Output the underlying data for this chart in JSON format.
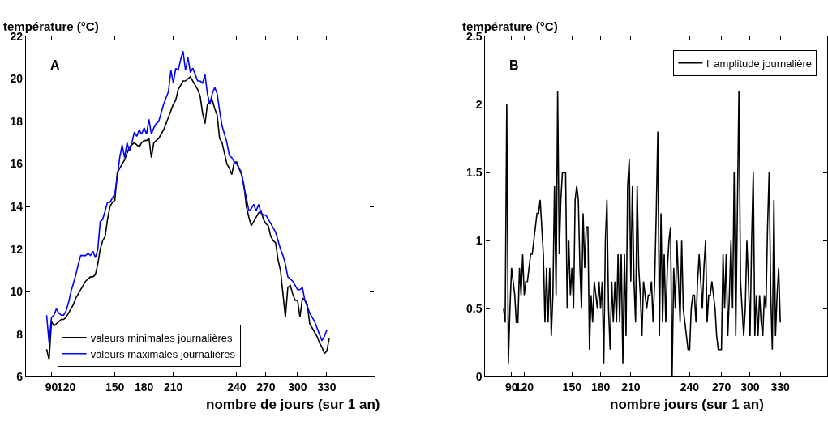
{
  "chart_data": [
    {
      "type": "line",
      "xlabel": "nombre de jours (sur 1 an)",
      "ylabel": "température (°C)",
      "annotations": [
        "A"
      ],
      "ylim": [
        6,
        22
      ],
      "yticks": [
        6,
        8,
        10,
        12,
        14,
        16,
        18,
        20,
        22
      ],
      "categories": [
        null,
        null,
        null,
        null,
        null,
        null,
        null,
        null,
        null,
        null,
        "90",
        null,
        null,
        null,
        null,
        null,
        "120",
        null,
        null,
        null,
        null,
        null,
        null,
        null,
        null,
        null,
        null,
        null,
        null,
        null,
        null,
        null,
        null,
        null,
        null,
        null,
        "150",
        null,
        null,
        null,
        null,
        null,
        null,
        null,
        null,
        null,
        null,
        null,
        "180",
        null,
        null,
        null,
        null,
        null,
        null,
        null,
        null,
        null,
        null,
        null,
        "210",
        null,
        null,
        null,
        null,
        null,
        null,
        null,
        null,
        null,
        null,
        null,
        null,
        null,
        null,
        null,
        null,
        null,
        null,
        null,
        null,
        null,
        null,
        null,
        null,
        null,
        "240",
        null,
        null,
        null,
        null,
        null,
        null,
        null,
        null,
        null,
        null,
        null,
        "270",
        null,
        null,
        null,
        null,
        null,
        null,
        null,
        null,
        null,
        null,
        null,
        null,
        "300",
        null,
        null,
        null,
        null,
        null,
        null,
        null,
        null,
        null,
        null,
        null,
        "330",
        null,
        null,
        null,
        null,
        null,
        null,
        null,
        null,
        null,
        null,
        null,
        null,
        null,
        null,
        null,
        null,
        null,
        null,
        null
      ],
      "legend": "bottom",
      "marker": "none",
      "line_style": "solid",
      "series": [
        {
          "name": "valeurs minimales journalières",
          "color": "#000000",
          "values": [
            null,
            null,
            null,
            null,
            null,
            null,
            null,
            null,
            7.3,
            6.8,
            8.6,
            8.4,
            8.5,
            8.6,
            8.7,
            8.7,
            8.8,
            9.0,
            9.2,
            9.4,
            9.7,
            9.9,
            10.1,
            10.3,
            10.5,
            10.6,
            10.7,
            10.7,
            10.8,
            11.3,
            12.0,
            12.4,
            12.6,
            13.4,
            14.0,
            14.2,
            14.3,
            15.6,
            15.8,
            16.0,
            16.2,
            16.5,
            16.8,
            16.9,
            17.0,
            16.9,
            16.8,
            17.0,
            17.1,
            17.1,
            17.2,
            16.3,
            17.0,
            17.1,
            17.2,
            17.4,
            17.6,
            17.9,
            18.2,
            18.5,
            18.8,
            19.0,
            19.5,
            19.7,
            19.9,
            19.9,
            20.0,
            20.1,
            19.9,
            19.7,
            19.5,
            19.2,
            18.4,
            17.9,
            18.8,
            18.9,
            19.0,
            18.6,
            18.3,
            17.2,
            17.0,
            16.5,
            16.0,
            15.8,
            15.5,
            16.1,
            16.1,
            15.8,
            15.5,
            15.0,
            14.0,
            13.5,
            13.1,
            13.3,
            13.5,
            13.7,
            13.8,
            13.4,
            13.2,
            13.1,
            12.6,
            12.4,
            12.3,
            11.5,
            11.0,
            9.9,
            8.8,
            10.2,
            10.3,
            9.9,
            9.6,
            9.6,
            8.8,
            9.7,
            9.6,
            9.4,
            8.5,
            8.3,
            8.1,
            7.9,
            7.6,
            7.4,
            7.1,
            7.2,
            7.8,
            null,
            null,
            null,
            null,
            null,
            null,
            null,
            null,
            null,
            null,
            null,
            null,
            null,
            null,
            null,
            null,
            null,
            null
          ]
        },
        {
          "name": "valeurs maximales journalières",
          "color": "#0000ff",
          "values": [
            null,
            null,
            null,
            null,
            null,
            null,
            null,
            null,
            8.9,
            7.6,
            8.8,
            8.9,
            9.2,
            9.0,
            8.9,
            8.9,
            9.1,
            9.5,
            10.0,
            10.4,
            10.8,
            11.3,
            11.7,
            11.7,
            11.7,
            11.8,
            11.7,
            11.9,
            11.6,
            12.0,
            13.3,
            13.4,
            13.8,
            14.2,
            14.2,
            14.4,
            14.6,
            15.4,
            16.3,
            16.9,
            16.3,
            17.0,
            16.6,
            17.0,
            17.5,
            17.3,
            17.6,
            17.4,
            17.7,
            17.4,
            18.1,
            17.4,
            17.7,
            17.9,
            18.0,
            18.4,
            18.8,
            19.1,
            19.4,
            20.4,
            19.8,
            20.5,
            20.4,
            20.9,
            21.3,
            20.4,
            21.0,
            20.3,
            20.5,
            20.2,
            19.9,
            19.9,
            19.8,
            20.2,
            19.3,
            18.8,
            19.3,
            19.6,
            19.3,
            18.5,
            17.8,
            17.4,
            17.0,
            16.4,
            16.3,
            16.1,
            16.0,
            15.8,
            15.6,
            14.9,
            14.4,
            13.8,
            13.9,
            14.1,
            13.8,
            14.1,
            13.7,
            13.6,
            13.6,
            13.4,
            13.2,
            13.0,
            12.8,
            12.4,
            12.0,
            11.7,
            11.3,
            10.7,
            10.6,
            10.5,
            10.3,
            10.1,
            10.1,
            10.2,
            9.6,
            9.3,
            9.0,
            8.8,
            8.6,
            8.3,
            8.0,
            7.7,
            7.9,
            8.2,
            null,
            null,
            null,
            null,
            null,
            null,
            null,
            null,
            null,
            null,
            null,
            null,
            null,
            null,
            null,
            null,
            null,
            null,
            null
          ]
        }
      ]
    },
    {
      "type": "line",
      "xlabel": "nombre jours (sur 1 an)",
      "ylabel": "température (°C)",
      "annotations": [
        "B"
      ],
      "ylim": [
        0,
        2.5
      ],
      "yticks": [
        0,
        0.5,
        1,
        1.5,
        2,
        2.5
      ],
      "categories": [
        null,
        null,
        null,
        null,
        null,
        null,
        null,
        null,
        null,
        null,
        null,
        null,
        null,
        null,
        null,
        null,
        "90",
        null,
        null,
        null,
        null,
        null,
        null,
        null,
        "120",
        null,
        null,
        null,
        null,
        null,
        null,
        null,
        null,
        null,
        null,
        null,
        null,
        null,
        null,
        null,
        null,
        null,
        null,
        null,
        null,
        null,
        null,
        null,
        null,
        null,
        null,
        null,
        null,
        null,
        "150",
        null,
        null,
        null,
        null,
        null,
        null,
        null,
        null,
        null,
        null,
        null,
        null,
        null,
        null,
        null,
        null,
        null,
        "180",
        null,
        null,
        null,
        null,
        null,
        null,
        null,
        null,
        null,
        null,
        null,
        null,
        null,
        null,
        null,
        null,
        null,
        null,
        "210",
        null,
        null,
        null,
        null,
        null,
        null,
        null,
        null,
        null,
        null,
        null,
        null,
        null,
        null,
        null,
        null,
        null,
        null,
        null,
        null,
        null,
        null,
        null,
        null,
        null,
        null,
        null,
        null,
        null,
        null,
        null,
        null,
        null,
        null,
        null,
        null,
        "240",
        null,
        null,
        null,
        null,
        null,
        null,
        null,
        null,
        null,
        null,
        null,
        null,
        null,
        null,
        null,
        null,
        null,
        null,
        null,
        "270",
        null,
        null,
        null,
        null,
        null,
        null,
        null,
        null,
        null,
        null,
        null,
        null,
        null,
        null,
        null,
        null,
        null,
        "300",
        null,
        null,
        null,
        null,
        null,
        null,
        null,
        null,
        null,
        null,
        null,
        null,
        null,
        null,
        null,
        null,
        null,
        null,
        "330",
        null,
        null,
        null,
        null,
        null,
        null,
        null,
        null,
        null,
        null,
        null,
        null,
        null,
        null,
        null,
        null,
        null,
        null,
        null,
        null,
        null,
        null,
        null,
        null,
        null,
        null,
        null,
        null,
        null
      ],
      "legend": "top right",
      "marker": "none",
      "line_style": "solid",
      "series": [
        {
          "name": "l' amplitude journalière",
          "color": "#000000",
          "values": [
            null,
            null,
            null,
            null,
            null,
            null,
            null,
            null,
            null,
            null,
            null,
            0.5,
            0.4,
            2.0,
            0.1,
            0.5,
            0.8,
            0.7,
            0.6,
            0.4,
            0.4,
            0.8,
            0.6,
            0.9,
            0.6,
            0.7,
            0.7,
            0.8,
            0.9,
            0.9,
            1.0,
            1.1,
            1.2,
            1.2,
            1.3,
            1.1,
            0.9,
            0.4,
            0.8,
            0.4,
            0.8,
            0.3,
            0.6,
            1.4,
            0.6,
            2.1,
            0.9,
            1.3,
            1.5,
            1.5,
            1.5,
            0.5,
            1.0,
            0.6,
            0.8,
            0.5,
            1.3,
            1.4,
            1.3,
            0.8,
            0.5,
            1.2,
            0.8,
            1.1,
            1.1,
            0.2,
            0.6,
            0.4,
            0.7,
            0.6,
            0.5,
            0.7,
            0.5,
            0.7,
            0.1,
            1.0,
            1.3,
            0.5,
            0.2,
            0.7,
            0.4,
            0.7,
            0.4,
            0.9,
            0.4,
            0.9,
            0.1,
            0.9,
            0.3,
            1.4,
            1.6,
            0.7,
            1.4,
            0.7,
            0.4,
            1.4,
            0.8,
            0.6,
            0.3,
            0.7,
            0.6,
            0.5,
            0.6,
            0.6,
            0.7,
            0.4,
            0.7,
            1.2,
            1.8,
            0.3,
            1.2,
            0.4,
            0.9,
            0.4,
            0.8,
            1.0,
            1.1,
            0.0,
            0.8,
            0.5,
            1.0,
            0.7,
            0.4,
            1.0,
            0.5,
            0.4,
            0.3,
            0.2,
            0.2,
            0.5,
            0.6,
            0.6,
            0.4,
            0.7,
            0.9,
            0.7,
            0.5,
            0.8,
            1.0,
            0.4,
            0.6,
            0.6,
            0.7,
            0.6,
            0.5,
            0.3,
            0.2,
            0.2,
            0.2,
            0.9,
            0.5,
            0.9,
            0.3,
            0.6,
            1.0,
            0.5,
            1.5,
            0.3,
            1.2,
            2.1,
            0.7,
            0.5,
            0.3,
            0.5,
            1.0,
            0.7,
            0.3,
            1.0,
            1.5,
            0.3,
            0.6,
            0.3,
            0.6,
            0.4,
            0.3,
            0.6,
            0.5,
            1.1,
            1.5,
            0.6,
            0.2,
            1.3,
            0.3,
            0.6,
            0.8,
            0.4,
            null,
            null,
            null,
            null,
            null,
            null,
            null,
            null,
            null,
            null,
            null,
            null,
            null,
            null,
            null,
            null,
            null,
            null,
            null,
            null,
            null,
            null,
            null,
            null,
            null,
            null,
            null,
            null,
            null
          ]
        }
      ]
    }
  ]
}
